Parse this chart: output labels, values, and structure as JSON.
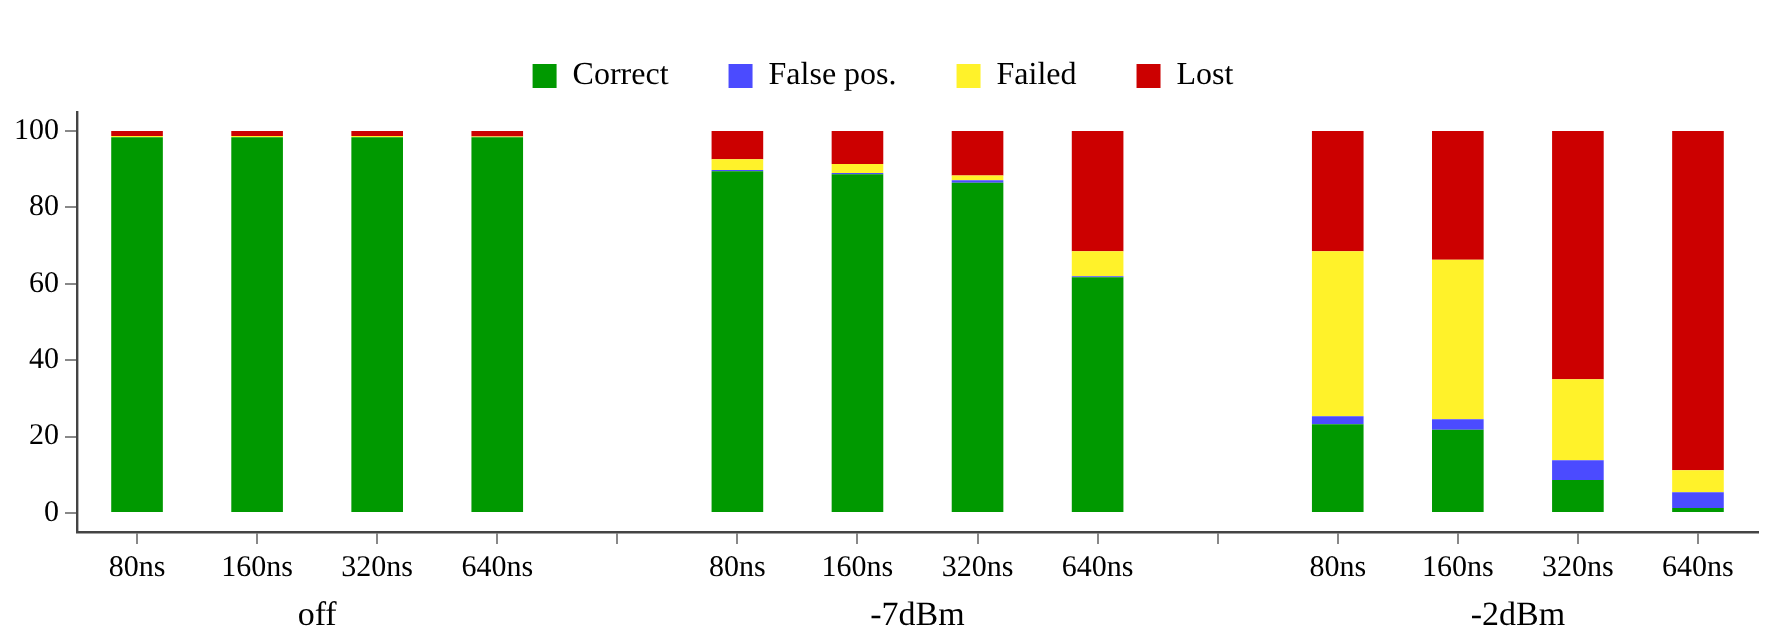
{
  "chart_data": {
    "type": "bar",
    "stacked": true,
    "categories": [
      "80ns",
      "160ns",
      "320ns",
      "640ns",
      null,
      "80ns",
      "160ns",
      "320ns",
      "640ns",
      null,
      "80ns",
      "160ns",
      "320ns",
      "640ns"
    ],
    "series": [
      {
        "name": "Correct",
        "color": "#009900",
        "values": [
          98.4,
          98.4,
          98.4,
          98.4,
          null,
          89.5,
          88.7,
          86.5,
          61.7,
          null,
          23.2,
          21.8,
          8.6,
          1.3
        ]
      },
      {
        "name": "False pos.",
        "color": "#4b4bff",
        "values": [
          0,
          0,
          0,
          0,
          null,
          0.3,
          0.3,
          0.6,
          0.3,
          null,
          2.1,
          2.7,
          5.2,
          4.1
        ]
      },
      {
        "name": "Failed",
        "color": "#fff22a",
        "values": [
          0.3,
          0.3,
          0.3,
          0.2,
          null,
          2.8,
          2.4,
          1.3,
          6.5,
          null,
          43.2,
          41.8,
          21.2,
          5.8
        ]
      },
      {
        "name": "Lost",
        "color": "#cc0000",
        "values": [
          1.3,
          1.3,
          1.3,
          1.4,
          null,
          7.4,
          8.6,
          11.6,
          31.5,
          null,
          31.5,
          33.7,
          65.0,
          88.8
        ]
      }
    ],
    "ylim": [
      -5,
      105
    ],
    "yticks": [
      0,
      20,
      40,
      60,
      80,
      100
    ],
    "grid": false,
    "legend": "top",
    "annotations": [
      "off",
      "-7dBm",
      "-2dBm"
    ]
  }
}
